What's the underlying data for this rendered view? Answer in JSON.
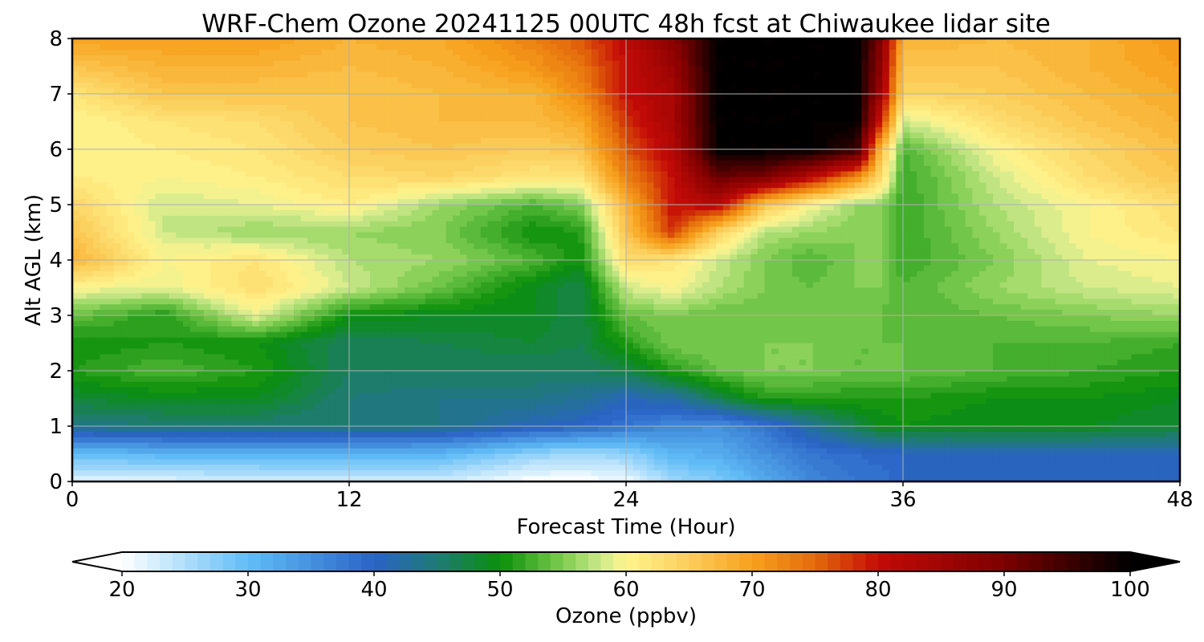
{
  "chart_data": {
    "type": "heatmap",
    "title": "WRF-Chem Ozone  20241125 00UTC 48h fcst at Chiwaukee lidar site",
    "xlabel": "Forecast Time (Hour)",
    "ylabel": "Alt AGL (km)",
    "xlim": [
      0,
      48
    ],
    "ylim": [
      0,
      8
    ],
    "x_ticks": [
      0,
      12,
      24,
      36,
      48
    ],
    "y_ticks": [
      0,
      1,
      2,
      3,
      4,
      5,
      6,
      7,
      8
    ],
    "grid": true,
    "x": [
      0,
      4,
      8,
      12,
      16,
      20,
      22,
      24,
      26,
      28,
      30,
      32,
      34,
      35,
      36,
      40,
      44,
      48
    ],
    "y": [
      0,
      0.5,
      1,
      1.5,
      2,
      2.5,
      3,
      3.5,
      4,
      4.5,
      5,
      5.5,
      6,
      6.5,
      7,
      7.5,
      8
    ],
    "z": [
      [
        22,
        22,
        23,
        23,
        23,
        20,
        20,
        21,
        26,
        28,
        32,
        36,
        38,
        38,
        40,
        40,
        40,
        40
      ],
      [
        30,
        31,
        31,
        31,
        31,
        27,
        26,
        27,
        31,
        32,
        35,
        38,
        39,
        40,
        40,
        41,
        41,
        41
      ],
      [
        44,
        45,
        45,
        45,
        44,
        41,
        40,
        38,
        36,
        35,
        38,
        43,
        47,
        49,
        50,
        49,
        49,
        48
      ],
      [
        48,
        49,
        49,
        45,
        44,
        44,
        43,
        41,
        42,
        47,
        51,
        51,
        51,
        51,
        51,
        50,
        50,
        49
      ],
      [
        51,
        53,
        51,
        46,
        46,
        46,
        46,
        47,
        51,
        54,
        55,
        55,
        54,
        54,
        54,
        53,
        52,
        51
      ],
      [
        50,
        51,
        50,
        46,
        47,
        48,
        47,
        51,
        55,
        55,
        55,
        55,
        54,
        54,
        54,
        53,
        53,
        52
      ],
      [
        54,
        51,
        59,
        50,
        49,
        49,
        47,
        54,
        55,
        54,
        54,
        54,
        55,
        54,
        53,
        54,
        55,
        56
      ],
      [
        60,
        59,
        63,
        58,
        54,
        49,
        47,
        58,
        60,
        57,
        55,
        54,
        55,
        55,
        53,
        56,
        58,
        59
      ],
      [
        68,
        60,
        62,
        57,
        56,
        53,
        50,
        63,
        62,
        58,
        55,
        53,
        55,
        55,
        52,
        55,
        59,
        60
      ],
      [
        66,
        58,
        56,
        56,
        55,
        50,
        51,
        66,
        78,
        64,
        57,
        56,
        55,
        55,
        52,
        56,
        60,
        62
      ],
      [
        64,
        58,
        59,
        61,
        56,
        53,
        55,
        68,
        80,
        82,
        66,
        60,
        56,
        56,
        52,
        57,
        60,
        63
      ],
      [
        61,
        60,
        61,
        63,
        64,
        62,
        62,
        73,
        80,
        92,
        90,
        82,
        72,
        64,
        52,
        58,
        63,
        66
      ],
      [
        60,
        61,
        62,
        65,
        66,
        65,
        66,
        76,
        82,
        100,
        100,
        100,
        96,
        68,
        53,
        60,
        64,
        67
      ],
      [
        60,
        62,
        63,
        66,
        67,
        67,
        69,
        78,
        84,
        100,
        100,
        100,
        100,
        80,
        58,
        63,
        66,
        68
      ],
      [
        62,
        66,
        66,
        66,
        67,
        68,
        72,
        80,
        84,
        100,
        100,
        100,
        100,
        86,
        64,
        65,
        67,
        69
      ],
      [
        66,
        68,
        68,
        67,
        68,
        71,
        74,
        80,
        86,
        100,
        100,
        100,
        100,
        88,
        66,
        66,
        68,
        70
      ],
      [
        70,
        70,
        70,
        68,
        69,
        73,
        76,
        81,
        88,
        100,
        100,
        100,
        100,
        90,
        68,
        67,
        68,
        71
      ]
    ],
    "colorbar": {
      "label": "Ozone  (ppbv)",
      "min": 20,
      "max": 100,
      "ticks": [
        20,
        30,
        40,
        50,
        60,
        70,
        80,
        90,
        100
      ],
      "extend": "both",
      "levels": 80
    },
    "colormap": [
      [
        20,
        "#ffffff"
      ],
      [
        30,
        "#61bdf7"
      ],
      [
        40,
        "#2a63c6"
      ],
      [
        45,
        "#1f7a76"
      ],
      [
        50,
        "#0a8f0a"
      ],
      [
        55,
        "#7dcc50"
      ],
      [
        58,
        "#cfe98c"
      ],
      [
        60,
        "#fff58f"
      ],
      [
        65,
        "#fbcd5a"
      ],
      [
        70,
        "#f7a11c"
      ],
      [
        75,
        "#e46a0b"
      ],
      [
        80,
        "#c40b07"
      ],
      [
        90,
        "#7c0000"
      ],
      [
        100,
        "#000000"
      ]
    ]
  }
}
